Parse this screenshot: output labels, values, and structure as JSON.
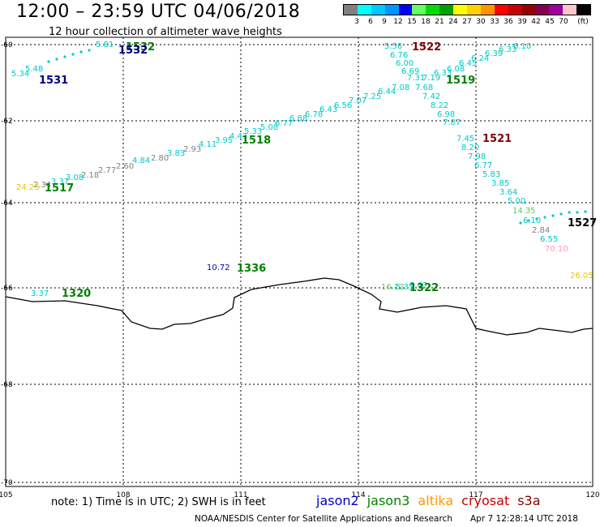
{
  "header": {
    "title": "12:00 – 23:59 UTC 04/06/2018",
    "subtitle": "12 hour collection of altimeter wave heights"
  },
  "legend": {
    "unit": "(ft)",
    "colors": [
      "#808080",
      "#00ffff",
      "#00c8ff",
      "#0096ff",
      "#0000ff",
      "#64ff64",
      "#00dc00",
      "#00a000",
      "#ffff00",
      "#ffd200",
      "#ff9600",
      "#ff0000",
      "#c80000",
      "#960000",
      "#820050",
      "#a000a0",
      "#ffc8c8",
      "#000000"
    ],
    "labels": [
      "3",
      "6",
      "9",
      "12",
      "15",
      "18",
      "21",
      "24",
      "27",
      "30",
      "33",
      "36",
      "39",
      "42",
      "45",
      "70"
    ]
  },
  "axes": {
    "x_ticks": [
      "105",
      "108",
      "111",
      "114",
      "117",
      "120"
    ],
    "y_ticks": [
      "-60",
      "-62",
      "-64",
      "-66",
      "-68",
      "-70"
    ]
  },
  "passes": [
    {
      "id": "1531",
      "color": "#000080"
    },
    {
      "id": "1532",
      "color": "#008000"
    },
    {
      "id": "1532",
      "color": "#000080"
    },
    {
      "id": "1522",
      "color": "#800000"
    },
    {
      "id": "1519",
      "color": "#008000"
    },
    {
      "id": "1521",
      "color": "#800000"
    },
    {
      "id": "1518",
      "color": "#008000"
    },
    {
      "id": "1517",
      "color": "#008000"
    },
    {
      "id": "1527",
      "color": "#000000"
    },
    {
      "id": "1336",
      "color": "#008000"
    },
    {
      "id": "1320",
      "color": "#008000"
    },
    {
      "id": "1322",
      "color": "#008000"
    }
  ],
  "readings": [
    {
      "v": "5.56",
      "c": "#00c8c8"
    },
    {
      "v": "6.76",
      "c": "#00c8c8"
    },
    {
      "v": "6.00",
      "c": "#00c8c8"
    },
    {
      "v": "6.69",
      "c": "#00c8c8"
    },
    {
      "v": "7.31",
      "c": "#00c8c8"
    },
    {
      "v": "7.19",
      "c": "#00c8c8"
    },
    {
      "v": "6.33",
      "c": "#00c8c8"
    },
    {
      "v": "6.08",
      "c": "#00c8c8"
    },
    {
      "v": "6.45",
      "c": "#00c8c8"
    },
    {
      "v": "6.24",
      "c": "#00c8c8"
    },
    {
      "v": "6.39",
      "c": "#00c8c8"
    },
    {
      "v": "6.33",
      "c": "#00c8c8"
    },
    {
      "v": "6.10",
      "c": "#00c8c8"
    },
    {
      "v": "7.08",
      "c": "#00c8c8"
    },
    {
      "v": "7.68",
      "c": "#00c8c8"
    },
    {
      "v": "7.42",
      "c": "#00c8c8"
    },
    {
      "v": "8.22",
      "c": "#00c8c8"
    },
    {
      "v": "6.98",
      "c": "#00c8c8"
    },
    {
      "v": "7.87",
      "c": "#00c8c8"
    },
    {
      "v": "7.45",
      "c": "#00c8c8"
    },
    {
      "v": "8.20",
      "c": "#00c8c8"
    },
    {
      "v": "7.98",
      "c": "#00c8c8"
    },
    {
      "v": "6.77",
      "c": "#00c8c8"
    },
    {
      "v": "5.83",
      "c": "#00c8c8"
    },
    {
      "v": "3.85",
      "c": "#00c8c8"
    },
    {
      "v": "3.64",
      "c": "#00c8c8"
    },
    {
      "v": "5.00",
      "c": "#00c8c8"
    },
    {
      "v": "14.35",
      "c": "#64c864"
    },
    {
      "v": "6.10",
      "c": "#00c8c8"
    },
    {
      "v": "2.84",
      "c": "#808080"
    },
    {
      "v": "6.55",
      "c": "#00c8c8"
    },
    {
      "v": "70.10",
      "c": "#ff96c8"
    },
    {
      "v": "26.05",
      "c": "#e6c800"
    },
    {
      "v": "6.44",
      "c": "#00c8c8"
    },
    {
      "v": "7.25",
      "c": "#00c8c8"
    },
    {
      "v": "7.07",
      "c": "#00c8c8"
    },
    {
      "v": "6.56",
      "c": "#00c8c8"
    },
    {
      "v": "6.43",
      "c": "#00c8c8"
    },
    {
      "v": "6.78",
      "c": "#00c8c8"
    },
    {
      "v": "6.88",
      "c": "#00c8c8"
    },
    {
      "v": "6.77",
      "c": "#00c8c8"
    },
    {
      "v": "5.08",
      "c": "#00c8c8"
    },
    {
      "v": "5.33",
      "c": "#00c8c8"
    },
    {
      "v": "4.47",
      "c": "#00c8c8"
    },
    {
      "v": "3.95",
      "c": "#00c8c8"
    },
    {
      "v": "4.11",
      "c": "#00c8c8"
    },
    {
      "v": "2.93",
      "c": "#808080"
    },
    {
      "v": "3.83",
      "c": "#00c8c8"
    },
    {
      "v": "2.80",
      "c": "#808080"
    },
    {
      "v": "4.84",
      "c": "#00c8c8"
    },
    {
      "v": "2.60",
      "c": "#808080"
    },
    {
      "v": "2.77",
      "c": "#808080"
    },
    {
      "v": "2.18",
      "c": "#808080"
    },
    {
      "v": "3.08",
      "c": "#00c8c8"
    },
    {
      "v": "3.37",
      "c": "#00c8c8"
    },
    {
      "v": "2.34",
      "c": "#808080"
    },
    {
      "v": "24.23",
      "c": "#e6c800"
    },
    {
      "v": "10.72",
      "c": "#0000c8"
    },
    {
      "v": "3.37",
      "c": "#00c8c8"
    },
    {
      "v": "16.12",
      "c": "#64c864"
    },
    {
      "v": "5.35",
      "c": "#00c8c8"
    },
    {
      "v": "5.42",
      "c": "#00c8c8"
    },
    {
      "v": "5.81",
      "c": "#00c8c8"
    },
    {
      "v": "5.34",
      "c": "#00c8c8"
    },
    {
      "v": "5.48",
      "c": "#00c8c8"
    }
  ],
  "footer": {
    "note": "note:  1) Time is in UTC;  2) SWH is in feet",
    "satellites": [
      {
        "name": "jason2",
        "color": "#0000c8"
      },
      {
        "name": "jason3",
        "color": "#008000"
      },
      {
        "name": "altika",
        "color": "#ff9600"
      },
      {
        "name": "cryosat",
        "color": "#c80000"
      },
      {
        "name": "s3a",
        "color": "#800000"
      }
    ],
    "credit": "NOAA/NESDIS Center for Satellite Applications and Research",
    "timestamp": "Apr  7 12:28:14 UTC 2018"
  }
}
